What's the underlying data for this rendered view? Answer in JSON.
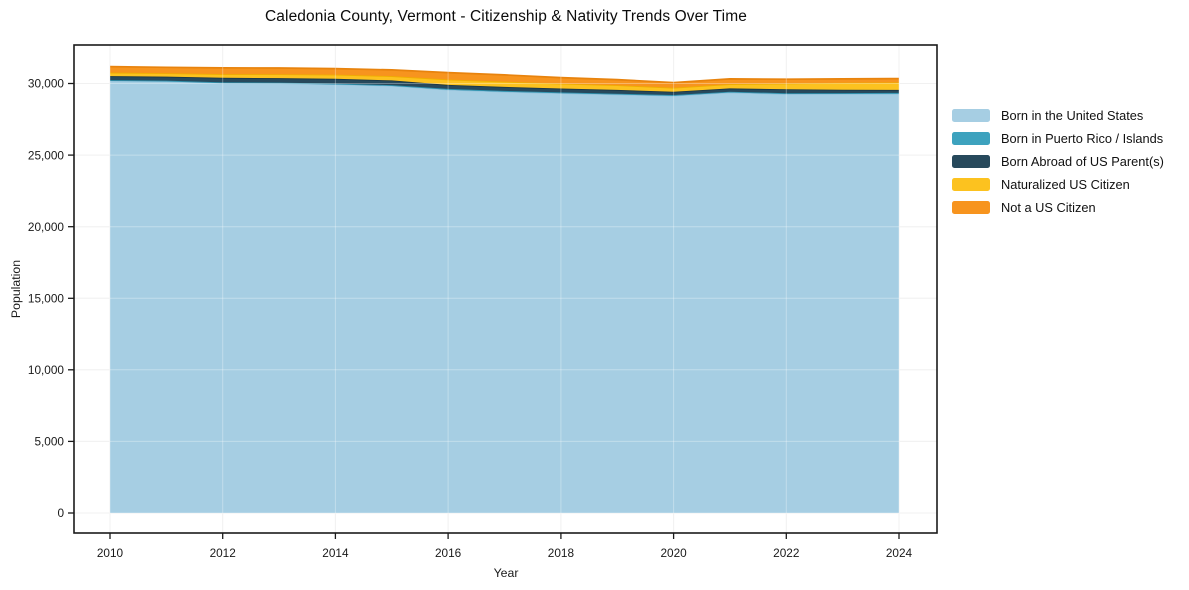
{
  "chart_data": {
    "type": "area",
    "stacked": true,
    "title": "Caledonia County, Vermont - Citizenship & Nativity Trends Over Time",
    "xlabel": "Year",
    "ylabel": "Population",
    "x": [
      2010,
      2011,
      2012,
      2013,
      2014,
      2015,
      2016,
      2017,
      2018,
      2019,
      2020,
      2021,
      2022,
      2023,
      2024
    ],
    "x_ticks": [
      2010,
      2012,
      2014,
      2016,
      2018,
      2020,
      2022,
      2024
    ],
    "x_tick_labels": [
      "2010",
      "2012",
      "2014",
      "2016",
      "2018",
      "2020",
      "2022",
      "2024"
    ],
    "y_ticks": [
      0,
      5000,
      10000,
      15000,
      20000,
      25000,
      30000
    ],
    "y_tick_labels": [
      "0",
      "5,000",
      "10,000",
      "15,000",
      "20,000",
      "25,000",
      "30,000"
    ],
    "xlim": [
      2009.35,
      2024.67
    ],
    "ylim": [
      -1400,
      32700
    ],
    "grid": true,
    "legend_position": "right",
    "series": [
      {
        "name": "Born in the United States",
        "color": "#A6CEE3",
        "edge": "#90C0DA",
        "values": [
          30210,
          30170,
          30040,
          30020,
          29950,
          29850,
          29570,
          29430,
          29330,
          29240,
          29150,
          29380,
          29270,
          29280,
          29290
        ]
      },
      {
        "name": "Born in Puerto Rico / Islands",
        "color": "#3DA2BE",
        "edge": "#2E92AE",
        "values": [
          30,
          30,
          40,
          40,
          40,
          40,
          50,
          50,
          50,
          50,
          50,
          50,
          50,
          50,
          50
        ]
      },
      {
        "name": "Born Abroad of US Parent(s)",
        "color": "#27495C",
        "edge": "#1B3646",
        "values": [
          280,
          280,
          320,
          320,
          340,
          330,
          280,
          280,
          270,
          260,
          230,
          230,
          280,
          240,
          210
        ]
      },
      {
        "name": "Naturalized US Citizen",
        "color": "#FCC21F",
        "edge": "#EFAE00",
        "values": [
          240,
          240,
          260,
          270,
          290,
          300,
          380,
          370,
          340,
          330,
          270,
          300,
          400,
          480,
          530
        ]
      },
      {
        "name": "Not a US Citizen",
        "color": "#F7941E",
        "edge": "#E8830D",
        "values": [
          420,
          410,
          430,
          430,
          420,
          430,
          480,
          470,
          420,
          390,
          360,
          360,
          300,
          270,
          260
        ]
      }
    ],
    "totals": [
      31180,
      31130,
      31090,
      31080,
      31040,
      30950,
      30760,
      30600,
      30410,
      30270,
      30060,
      30320,
      30300,
      30320,
      30340
    ]
  }
}
